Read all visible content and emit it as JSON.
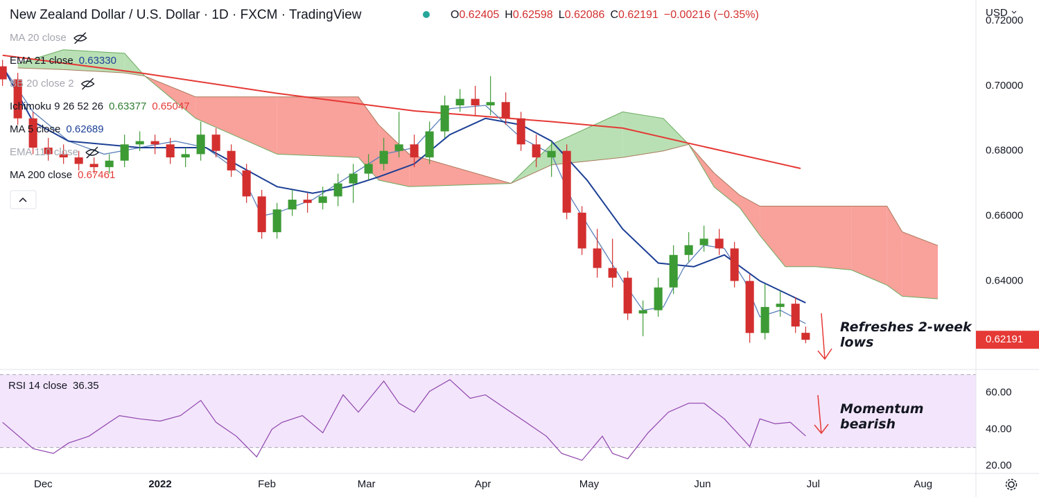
{
  "header": {
    "title": "New Zealand Dollar / U.S. Dollar · 1D · FXCM · TradingView",
    "ohlc": [
      {
        "k": "O",
        "v": "0.62405"
      },
      {
        "k": "H",
        "v": "0.62598"
      },
      {
        "k": "L",
        "v": "0.62086"
      },
      {
        "k": "C",
        "v": "0.62191"
      }
    ],
    "change": "−0.00216 (−0.35%)"
  },
  "currency": "USD",
  "indicators": [
    {
      "name": "MA 20 close",
      "hidden": true
    },
    {
      "name": "EMA 21 close",
      "values": [
        {
          "value": 0.6333,
          "label": "0.63330"
        }
      ],
      "value_colors": [
        "#1c3f95"
      ]
    },
    {
      "name": "BB 20 close 2",
      "hidden": true
    },
    {
      "name": "Ichimoku 9 26 52 26",
      "values": [
        0.63377,
        0.65047
      ],
      "value_colors": [
        "#2e7d32",
        "#e53935"
      ]
    },
    {
      "name": "MA 5 close",
      "values": [
        0.62689
      ],
      "value_colors": [
        "#1c3f95"
      ]
    },
    {
      "name": "EMA 110 close",
      "hidden": true
    },
    {
      "name": "MA 200 close",
      "values": [
        0.67461
      ],
      "value_colors": [
        "#e53935"
      ]
    }
  ],
  "chart_data": [
    {
      "type": "candlestick",
      "x": [
        0,
        3,
        6,
        9,
        12,
        15,
        18,
        21,
        24,
        27,
        30,
        33,
        36,
        39,
        42,
        45,
        48,
        51,
        54,
        57,
        60,
        63,
        66,
        69,
        72,
        75,
        78,
        81,
        84,
        87,
        90,
        93,
        96,
        99,
        102,
        105,
        108,
        111,
        114,
        117,
        120,
        123,
        126,
        129,
        132,
        135,
        138,
        141,
        144,
        147,
        150,
        153,
        156,
        158
      ],
      "candles": [
        [
          0.706,
          0.708,
          0.7,
          0.702
        ],
        [
          0.702,
          0.704,
          0.688,
          0.69
        ],
        [
          0.69,
          0.692,
          0.679,
          0.681
        ],
        [
          0.681,
          0.684,
          0.677,
          0.679
        ],
        [
          0.679,
          0.682,
          0.676,
          0.678
        ],
        [
          0.678,
          0.68,
          0.674,
          0.676
        ],
        [
          0.676,
          0.678,
          0.673,
          0.675
        ],
        [
          0.675,
          0.679,
          0.673,
          0.677
        ],
        [
          0.677,
          0.685,
          0.675,
          0.682
        ],
        [
          0.682,
          0.686,
          0.68,
          0.683
        ],
        [
          0.683,
          0.685,
          0.679,
          0.682
        ],
        [
          0.682,
          0.684,
          0.676,
          0.678
        ],
        [
          0.678,
          0.681,
          0.675,
          0.679
        ],
        [
          0.679,
          0.689,
          0.677,
          0.685
        ],
        [
          0.685,
          0.687,
          0.678,
          0.68
        ],
        [
          0.68,
          0.682,
          0.672,
          0.674
        ],
        [
          0.674,
          0.676,
          0.664,
          0.666
        ],
        [
          0.666,
          0.668,
          0.653,
          0.655
        ],
        [
          0.655,
          0.664,
          0.653,
          0.662
        ],
        [
          0.662,
          0.668,
          0.66,
          0.665
        ],
        [
          0.665,
          0.667,
          0.661,
          0.664
        ],
        [
          0.664,
          0.669,
          0.662,
          0.666
        ],
        [
          0.666,
          0.673,
          0.663,
          0.67
        ],
        [
          0.67,
          0.676,
          0.664,
          0.673
        ],
        [
          0.673,
          0.679,
          0.671,
          0.676
        ],
        [
          0.676,
          0.684,
          0.674,
          0.68
        ],
        [
          0.68,
          0.692,
          0.678,
          0.682
        ],
        [
          0.682,
          0.685,
          0.675,
          0.678
        ],
        [
          0.678,
          0.689,
          0.676,
          0.686
        ],
        [
          0.686,
          0.697,
          0.684,
          0.694
        ],
        [
          0.694,
          0.699,
          0.692,
          0.696
        ],
        [
          0.696,
          0.7,
          0.691,
          0.694
        ],
        [
          0.694,
          0.703,
          0.691,
          0.695
        ],
        [
          0.695,
          0.698,
          0.688,
          0.69
        ],
        [
          0.69,
          0.692,
          0.68,
          0.682
        ],
        [
          0.682,
          0.685,
          0.675,
          0.678
        ],
        [
          0.678,
          0.683,
          0.672,
          0.68
        ],
        [
          0.68,
          0.682,
          0.659,
          0.661
        ],
        [
          0.661,
          0.663,
          0.648,
          0.65
        ],
        [
          0.65,
          0.656,
          0.641,
          0.644
        ],
        [
          0.644,
          0.653,
          0.638,
          0.641
        ],
        [
          0.641,
          0.643,
          0.628,
          0.63
        ],
        [
          0.63,
          0.634,
          0.623,
          0.631
        ],
        [
          0.631,
          0.641,
          0.629,
          0.638
        ],
        [
          0.638,
          0.651,
          0.636,
          0.648
        ],
        [
          0.648,
          0.655,
          0.646,
          0.651
        ],
        [
          0.651,
          0.657,
          0.649,
          0.653
        ],
        [
          0.653,
          0.656,
          0.648,
          0.65
        ],
        [
          0.65,
          0.652,
          0.638,
          0.64
        ],
        [
          0.64,
          0.642,
          0.621,
          0.624
        ],
        [
          0.624,
          0.639,
          0.622,
          0.632
        ],
        [
          0.632,
          0.637,
          0.629,
          0.633
        ],
        [
          0.633,
          0.635,
          0.624,
          0.626
        ],
        [
          0.62405,
          0.62598,
          0.62086,
          0.62191
        ]
      ],
      "up_color": "#3d9b35",
      "down_color": "#d32f2f",
      "lines": [
        {
          "color": "#e53935",
          "width": 2,
          "x": [
            0,
            27,
            54,
            81,
            108,
            122,
            136,
            157
          ],
          "values": [
            0.7094,
            0.704,
            0.6977,
            0.6923,
            0.689,
            0.687,
            0.682,
            0.67461
          ]
        },
        {
          "color": "#5b7fb8",
          "width": 1.3,
          "x": [
            0,
            6,
            13,
            20,
            27,
            34,
            40,
            47,
            51,
            54,
            61,
            68,
            75,
            81,
            88,
            95,
            102,
            108,
            112,
            118,
            122,
            126,
            130,
            134,
            138,
            142,
            146,
            149,
            153,
            158
          ],
          "values": [
            0.706,
            0.692,
            0.683,
            0.679,
            0.681,
            0.683,
            0.681,
            0.673,
            0.66,
            0.661,
            0.665,
            0.672,
            0.679,
            0.681,
            0.693,
            0.694,
            0.684,
            0.679,
            0.665,
            0.65,
            0.64,
            0.631,
            0.632,
            0.644,
            0.651,
            0.65,
            0.64,
            0.629,
            0.631,
            0.62689
          ]
        },
        {
          "color": "#1c3f95",
          "width": 2,
          "x": [
            0,
            6,
            13,
            27,
            40,
            47,
            54,
            61,
            68,
            74,
            81,
            88,
            95,
            102,
            108,
            115,
            122,
            129,
            136,
            142,
            149,
            158
          ],
          "values": [
            0.706,
            0.689,
            0.683,
            0.681,
            0.681,
            0.675,
            0.669,
            0.667,
            0.669,
            0.672,
            0.676,
            0.685,
            0.69,
            0.688,
            0.683,
            0.671,
            0.656,
            0.6455,
            0.6444,
            0.648,
            0.64,
            0.6333
          ]
        }
      ],
      "cloud": {
        "x": [
          3,
          12,
          24,
          28,
          38,
          54,
          70,
          74,
          80,
          100,
          108,
          122,
          130,
          135,
          140,
          145,
          149,
          154,
          160,
          167,
          174,
          177,
          184
        ],
        "span_a": [
          0.7068,
          0.7111,
          0.71,
          0.703,
          0.69,
          0.679,
          0.678,
          0.671,
          0.669,
          0.67,
          0.682,
          0.692,
          0.69,
          0.682,
          0.6689,
          0.6626,
          0.654,
          0.6444,
          0.6444,
          0.6434,
          0.6387,
          0.6353,
          0.6345
        ],
        "span_b": [
          0.7055,
          0.705,
          0.704,
          0.703,
          0.6966,
          0.6966,
          0.6966,
          0.688,
          0.679,
          0.67,
          0.6757,
          0.678,
          0.68,
          0.682,
          0.6732,
          0.6664,
          0.663,
          0.663,
          0.663,
          0.663,
          0.663,
          0.6551,
          0.6509
        ],
        "up_color": "#b9e0b4",
        "down_color": "#f9a19b",
        "span_a_color": "#6aaa5f",
        "span_b_color": "#a9795a"
      },
      "xlim": [
        -0.5,
        191.5
      ],
      "xticks": [
        {
          "value": 8,
          "label": "Dec"
        },
        {
          "value": 31,
          "label": "2022"
        },
        {
          "value": 52,
          "label": "Feb"
        },
        {
          "value": 71.6,
          "label": "Mar"
        },
        {
          "value": 94.5,
          "label": "Apr"
        },
        {
          "value": 115.4,
          "label": "May"
        },
        {
          "value": 137.7,
          "label": "Jun"
        },
        {
          "value": 159.5,
          "label": "Jul"
        },
        {
          "value": 181.1,
          "label": "Aug"
        }
      ],
      "ylim": [
        0.613,
        0.7264
      ],
      "yticks": [
        {
          "value": 0.72,
          "label": "0.72000"
        },
        {
          "value": 0.7,
          "label": "0.70000"
        },
        {
          "value": 0.68,
          "label": "0.68000"
        },
        {
          "value": 0.66,
          "label": "0.66000"
        },
        {
          "value": 0.64,
          "label": "0.64000"
        },
        {
          "value": 0.62,
          "label": "0.62000"
        }
      ],
      "annotation": "Refreshes 2-week lows"
    },
    {
      "type": "line",
      "label": "RSI 14 close",
      "color": "#8e44ad",
      "band": [
        30,
        70
      ],
      "band_color": "#f3e5fb",
      "x": [
        0,
        4,
        6,
        10,
        13,
        17,
        21,
        23,
        27,
        31,
        35,
        39,
        42,
        46,
        50,
        53,
        55,
        59,
        63,
        67,
        70,
        75,
        78,
        81,
        84,
        88,
        92,
        95,
        99,
        103,
        107,
        110,
        114,
        118,
        120,
        123,
        127,
        131,
        135,
        138,
        142,
        147,
        149,
        152,
        155,
        158
      ],
      "values": [
        43.8,
        34.3,
        29.4,
        26.8,
        32.5,
        36.2,
        43.8,
        47.5,
        45.7,
        44.5,
        47.5,
        55.8,
        43.8,
        36.2,
        24.9,
        40,
        43.8,
        47.5,
        38.1,
        58.9,
        49.4,
        66.4,
        54.3,
        49.4,
        60.8,
        67.2,
        57,
        58.9,
        51.3,
        43.8,
        36.2,
        26.8,
        23,
        36.2,
        26.8,
        23.8,
        38.1,
        49.4,
        54.3,
        54.3,
        45.7,
        30.6,
        45.7,
        43,
        43.8,
        36.35
      ],
      "xlim": [
        -0.5,
        191.5
      ],
      "ylim": [
        15.8,
        72.8
      ],
      "yticks": [
        {
          "value": 60,
          "label": "60.00"
        },
        {
          "value": 40,
          "label": "40.00"
        },
        {
          "value": 20,
          "label": "20.00"
        }
      ],
      "annotation": "Momentum bearish"
    }
  ]
}
